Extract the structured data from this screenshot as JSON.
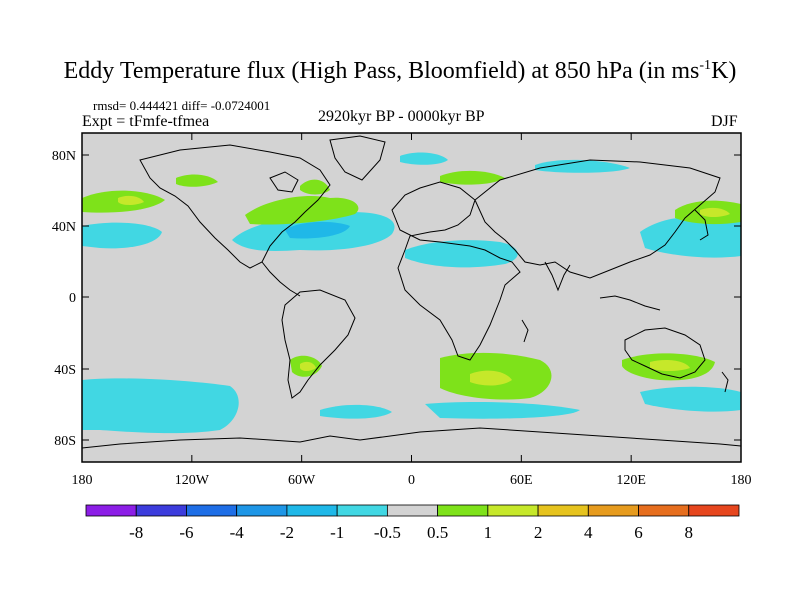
{
  "header": {
    "title_main": "Eddy Temperature flux (High Pass, Bloomfield) at 850 hPa (in ms",
    "title_sup": "-1",
    "title_end": "K)",
    "stats": "rmsd= 0.444421 diff= -0.0724001",
    "expt": "Expt = tFmfe-tfmea",
    "period": "2920kyr BP - 0000kyr BP",
    "season": "DJF"
  },
  "axes": {
    "lat_ticks": [
      "80N",
      "40N",
      "0",
      "40S",
      "80S"
    ],
    "lon_ticks": [
      "180",
      "120W",
      "60W",
      "0",
      "60E",
      "120E",
      "180"
    ]
  },
  "colors": {
    "background_field": "#d3d3d3",
    "neg_light": "#41d7e3",
    "neg_mid": "#1fb8e8",
    "pos_light": "#7ee21a",
    "pos_mid": "#c6e82a",
    "coast": "#000000"
  },
  "colorbar": {
    "colors": [
      "#8c1ee6",
      "#3c3cdc",
      "#1e6ee6",
      "#1e96e6",
      "#1fb8e8",
      "#41d7e3",
      "#d3d3d3",
      "#7ee21a",
      "#c6e82a",
      "#e6c31e",
      "#e69b1e",
      "#e66e1e",
      "#e6461e"
    ],
    "labels": [
      "-8",
      "-6",
      "-4",
      "-2",
      "-1",
      "-0.5",
      "0.5",
      "1",
      "2",
      "4",
      "6",
      "8"
    ]
  }
}
